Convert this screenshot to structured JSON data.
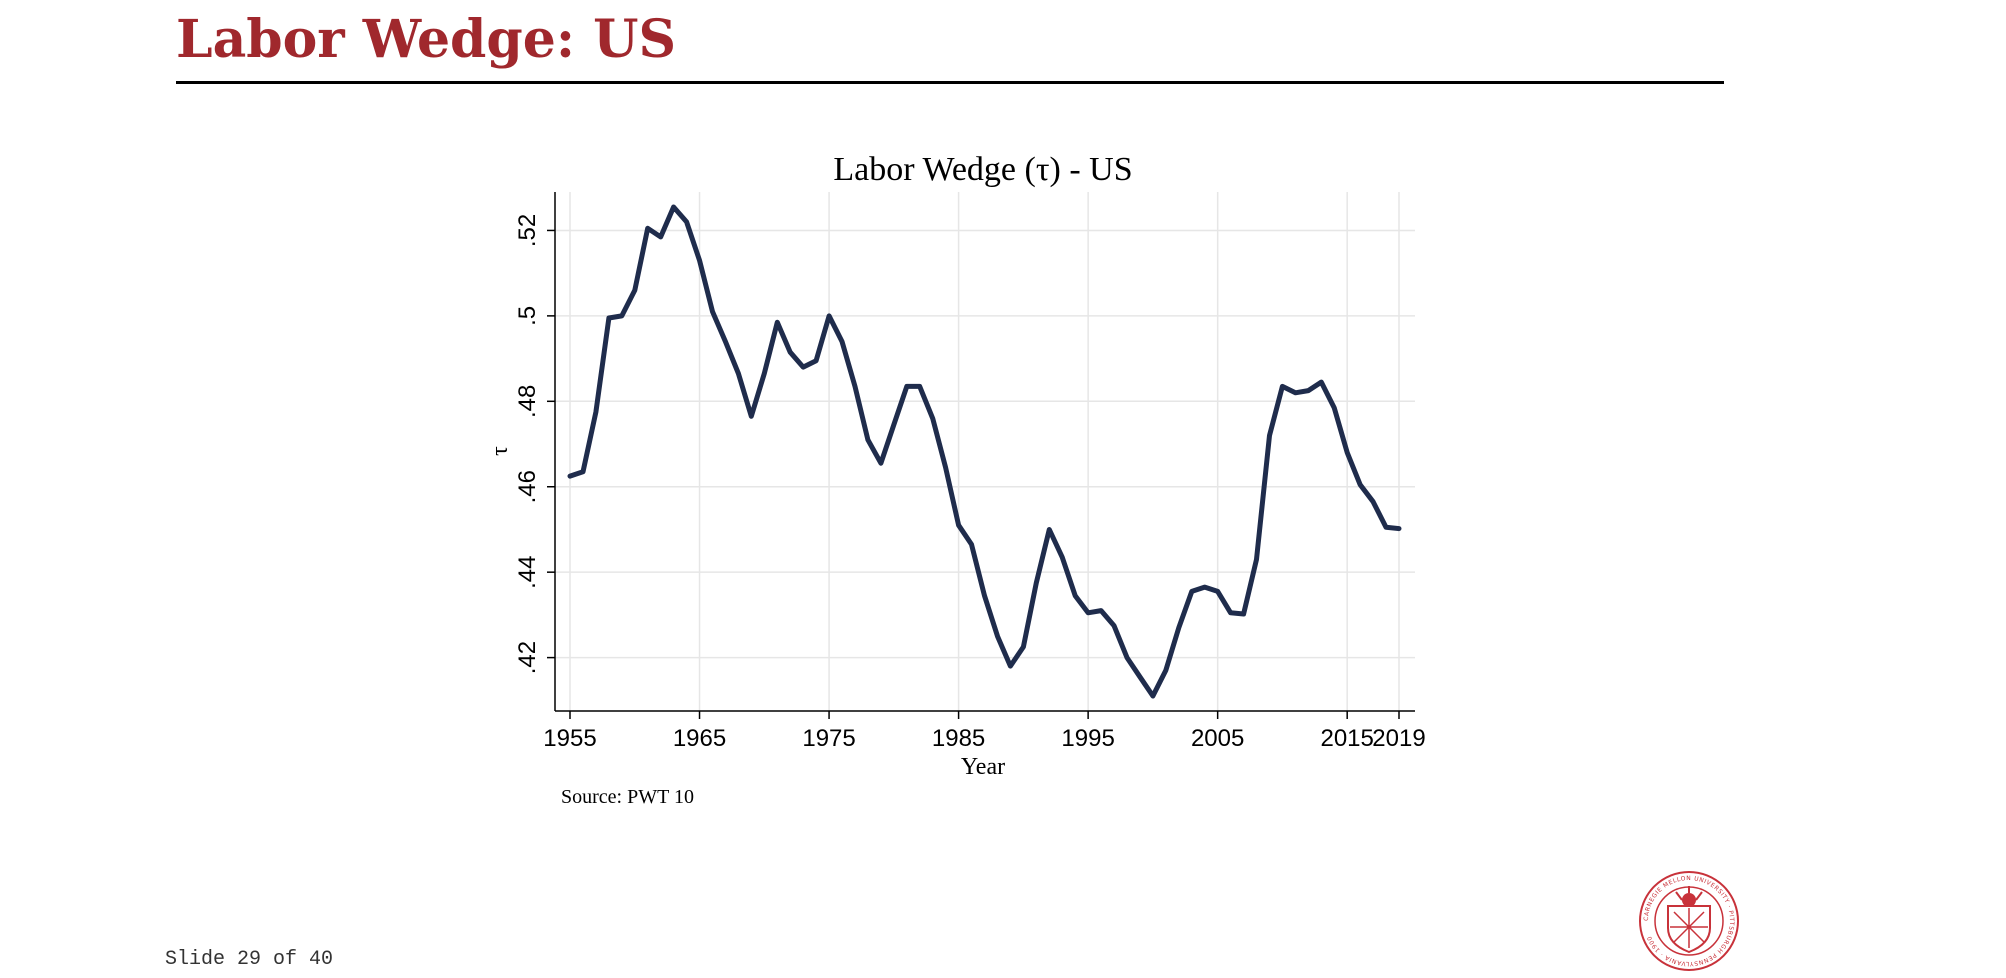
{
  "slide": {
    "title": "Labor Wedge:  US",
    "counter": "Slide 29 of 40",
    "source": "Source: PWT 10",
    "logo_text": "CARNEGIE MELLON UNIVERSITY · PITTSBURGH PENNSYLVANIA · 1900",
    "colors": {
      "title": "#a0282d",
      "line": "#1f2c4c",
      "seal": "#c8323a"
    }
  },
  "chart_data": {
    "type": "line",
    "title": "Labor Wedge (τ) - US",
    "xlabel": "Year",
    "ylabel": "τ",
    "xlim": [
      1955,
      2020
    ],
    "ylim": [
      0.4075,
      0.529
    ],
    "x_ticks": [
      1955,
      1965,
      1975,
      1985,
      1995,
      2005,
      2015,
      2019
    ],
    "y_ticks": [
      0.42,
      0.44,
      0.46,
      0.48,
      0.5,
      0.52
    ],
    "y_tick_labels": [
      ".42",
      ".44",
      ".46",
      ".48",
      ".5",
      ".52"
    ],
    "grid": true,
    "series": [
      {
        "x": [
          1955,
          1956,
          1957,
          1958,
          1959,
          1960,
          1961,
          1962,
          1963,
          1964,
          1965,
          1966,
          1967,
          1968,
          1969,
          1970,
          1971,
          1972,
          1973,
          1974,
          1975,
          1976,
          1977,
          1978,
          1979,
          1980,
          1981,
          1982,
          1983,
          1984,
          1985,
          1986,
          1987,
          1988,
          1989,
          1990,
          1991,
          1992,
          1993,
          1994,
          1995,
          1996,
          1997,
          1998,
          1999,
          2000,
          2001,
          2002,
          2003,
          2004,
          2005,
          2006,
          2007,
          2008,
          2009,
          2010,
          2011,
          2012,
          2013,
          2014,
          2015,
          2016,
          2017,
          2018,
          2019
        ],
        "values": [
          0.4625,
          0.4635,
          0.4775,
          0.4995,
          0.5,
          0.506,
          0.5205,
          0.5185,
          0.5255,
          0.522,
          0.513,
          0.501,
          0.494,
          0.4865,
          0.4765,
          0.4865,
          0.4985,
          0.4915,
          0.488,
          0.4895,
          0.5,
          0.494,
          0.4835,
          0.471,
          0.4655,
          0.4745,
          0.4835,
          0.4835,
          0.476,
          0.4645,
          0.451,
          0.4465,
          0.4345,
          0.425,
          0.418,
          0.4225,
          0.4375,
          0.45,
          0.4435,
          0.4345,
          0.4305,
          0.431,
          0.4275,
          0.42,
          0.4155,
          0.411,
          0.417,
          0.427,
          0.4355,
          0.4365,
          0.4355,
          0.4305,
          0.4302,
          0.443,
          0.472,
          0.4835,
          0.482,
          0.4825,
          0.4845,
          0.4785,
          0.468,
          0.4605,
          0.4565,
          0.4505,
          0.4502
        ]
      }
    ]
  }
}
